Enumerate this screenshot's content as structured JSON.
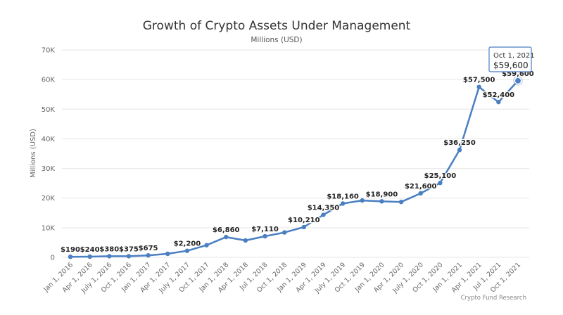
{
  "chart_data": {
    "type": "line",
    "title": "Growth of Crypto Assets Under Management",
    "subtitle": "Millions (USD)",
    "ylabel": "Millions (USD)",
    "xlabel": "",
    "ylim": [
      0,
      70000
    ],
    "yticks": [
      0,
      10000,
      20000,
      30000,
      40000,
      50000,
      60000,
      70000
    ],
    "ytick_labels": [
      "0",
      "10K",
      "20K",
      "30K",
      "40K",
      "50K",
      "60K",
      "70K"
    ],
    "grid": "horizontal",
    "legend": "none",
    "line_color": "#4a7fc1",
    "credit": "Crypto Fund Research",
    "tooltip": {
      "date": "Oct 1, 2021",
      "value": "$59,600"
    },
    "categories": [
      "Jan 1, 2016",
      "Apr 1, 2016",
      "July 1, 2016",
      "Oct 1, 2016",
      "Jan 1, 2017",
      "Apr 1, 2017",
      "July 1, 2017",
      "Oct 1, 2017",
      "Jan 1, 2018",
      "Apr 1, 2018",
      "Jul 1, 2018",
      "Oct 1, 2018",
      "Jan 1, 2019",
      "Apr 1, 2019",
      "July 1, 2019",
      "Oct 1, 2019",
      "Jan 1, 2020",
      "Apr 1, 2020",
      "July 1, 2020",
      "Oct 1, 2020",
      "Jan 1, 2021",
      "Apr 1, 2021",
      "Jul 1, 2021",
      "Oct 1, 2021"
    ],
    "values": [
      190,
      240,
      380,
      375,
      675,
      1200,
      2200,
      4100,
      6860,
      5700,
      7110,
      8400,
      10210,
      14350,
      18160,
      19200,
      18900,
      18700,
      21600,
      25100,
      36250,
      57500,
      52400,
      59600
    ],
    "data_labels": [
      "$190",
      "$240",
      "$380",
      "$375",
      "$675",
      "",
      "$2,200",
      "",
      "$6,860",
      "",
      "$7,110",
      "",
      "$10,210",
      "$14,350",
      "$18,160",
      "",
      "$18,900",
      "",
      "$21,600",
      "$25,100",
      "$36,250",
      "$57,500",
      "$52,400",
      "$59,600"
    ]
  }
}
